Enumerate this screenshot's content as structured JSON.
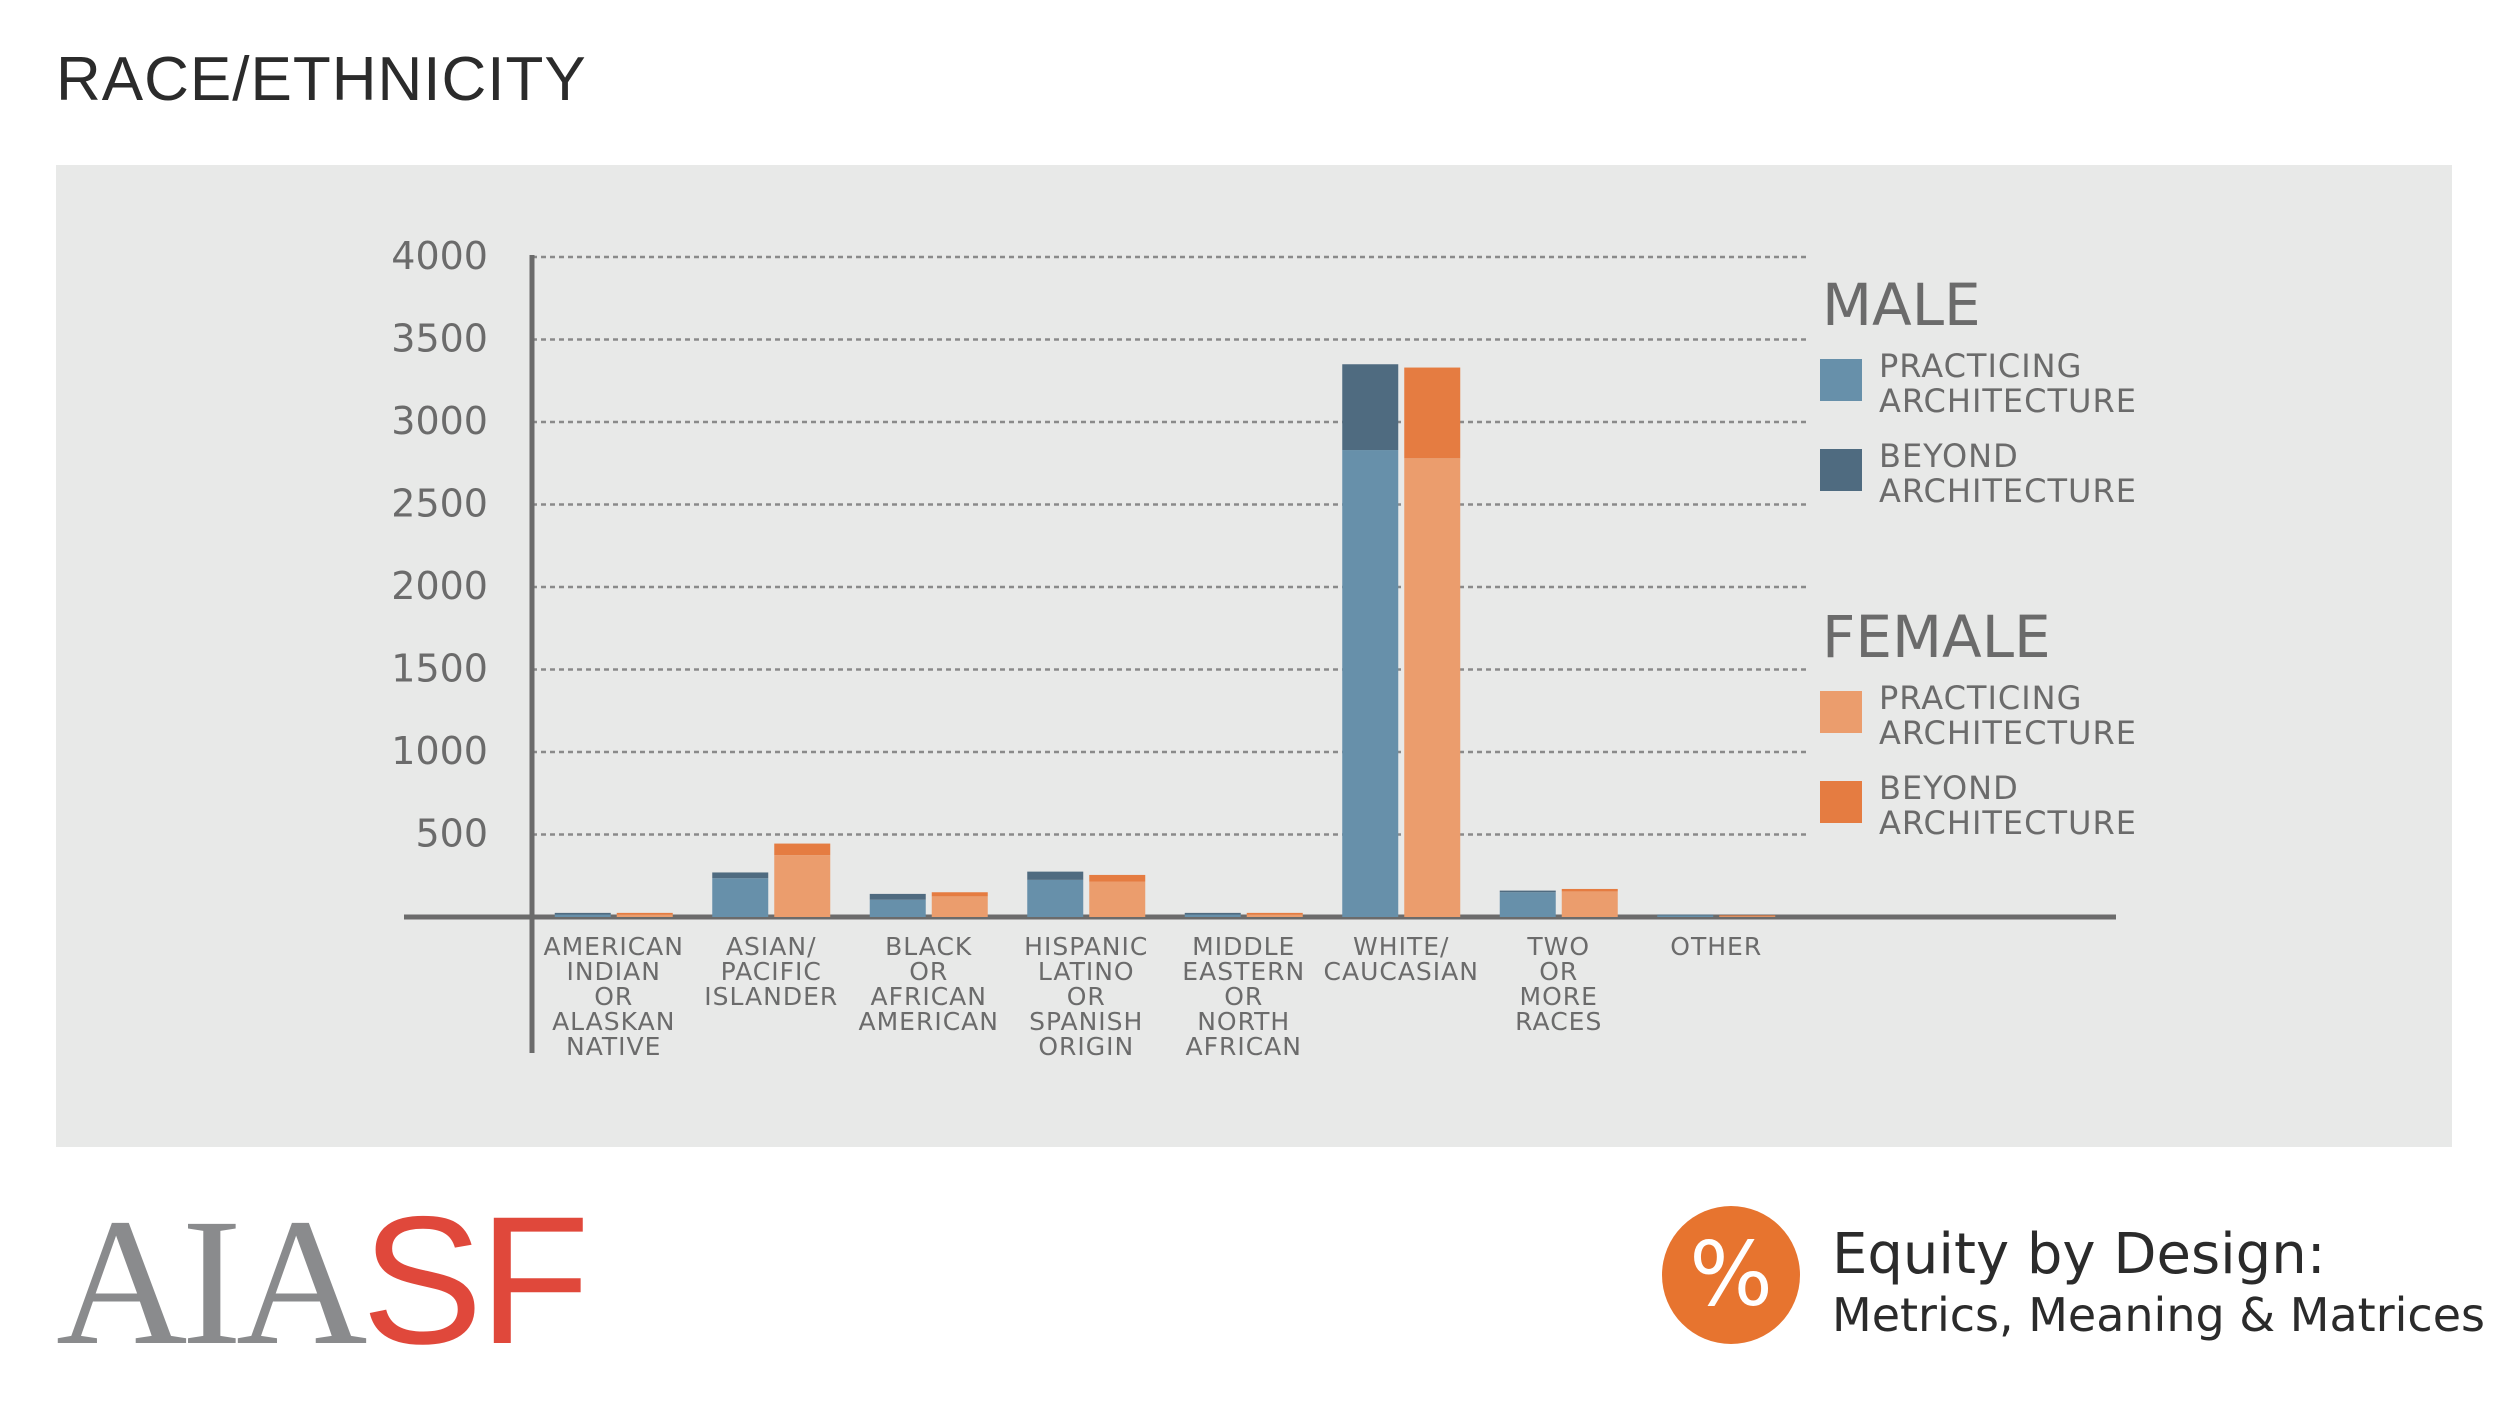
{
  "page_title": "RACE/ETHNICITY",
  "colors": {
    "panel": "#e8e9e8",
    "axis": "#6b6b6b",
    "grid": "#8a8a8a",
    "text": "#6b6b6b",
    "male_practicing": "#6790aa",
    "male_beyond": "#4f6b80",
    "female_practicing": "#eb9d6d",
    "female_beyond": "#e57c41"
  },
  "chart_data": {
    "type": "bar",
    "stacked": true,
    "grouped": true,
    "ylim": [
      0,
      4000
    ],
    "yticks": [
      "4000",
      "3500",
      "3000",
      "2500",
      "2000",
      "1500",
      "1000",
      "500"
    ],
    "grid": true,
    "categories": [
      [
        "AMERICAN",
        "INDIAN",
        "OR",
        "ALASKAN",
        "NATIVE"
      ],
      [
        "ASIAN/",
        "PACIFIC",
        "ISLANDER"
      ],
      [
        "BLACK",
        "OR",
        "AFRICAN",
        "AMERICAN"
      ],
      [
        "HISPANIC",
        "LATINO",
        "OR",
        "SPANISH",
        "ORIGIN"
      ],
      [
        "MIDDLE",
        "EASTERN",
        "OR",
        "NORTH",
        "AFRICAN"
      ],
      [
        "WHITE/",
        "CAUCASIAN"
      ],
      [
        "TWO",
        "OR",
        "MORE",
        "RACES"
      ],
      [
        "OTHER"
      ]
    ],
    "legend": {
      "placement": "right",
      "groups": [
        {
          "title": "MALE",
          "items": [
            {
              "label": [
                "PRACTICING",
                "ARCHITECTURE"
              ],
              "color": "#6790aa"
            },
            {
              "label": [
                "BEYOND",
                "ARCHITECTURE"
              ],
              "color": "#4f6b80"
            }
          ]
        },
        {
          "title": "FEMALE",
          "items": [
            {
              "label": [
                "PRACTICING",
                "ARCHITECTURE"
              ],
              "color": "#eb9d6d"
            },
            {
              "label": [
                "BEYOND",
                "ARCHITECTURE"
              ],
              "color": "#e57c41"
            }
          ]
        }
      ]
    },
    "series": [
      {
        "group": "MALE",
        "segment": "PRACTICING ARCHITECTURE",
        "color": "#6790aa",
        "values": [
          15,
          235,
          105,
          225,
          15,
          2830,
          150,
          10
        ]
      },
      {
        "group": "MALE",
        "segment": "BEYOND ARCHITECTURE",
        "color": "#4f6b80",
        "values": [
          10,
          35,
          35,
          50,
          10,
          520,
          10,
          5
        ]
      },
      {
        "group": "FEMALE",
        "segment": "PRACTICING ARCHITECTURE",
        "color": "#eb9d6d",
        "values": [
          15,
          375,
          125,
          215,
          15,
          2780,
          155,
          5
        ]
      },
      {
        "group": "FEMALE",
        "segment": "BEYOND ARCHITECTURE",
        "color": "#e57c41",
        "values": [
          10,
          70,
          25,
          40,
          10,
          550,
          15,
          5
        ]
      }
    ]
  },
  "logo": {
    "left": "AIA",
    "right": "SF"
  },
  "footer": {
    "badge": "%",
    "line1": "Equity by Design:",
    "line2": "Metrics, Meaning & Matrices"
  }
}
